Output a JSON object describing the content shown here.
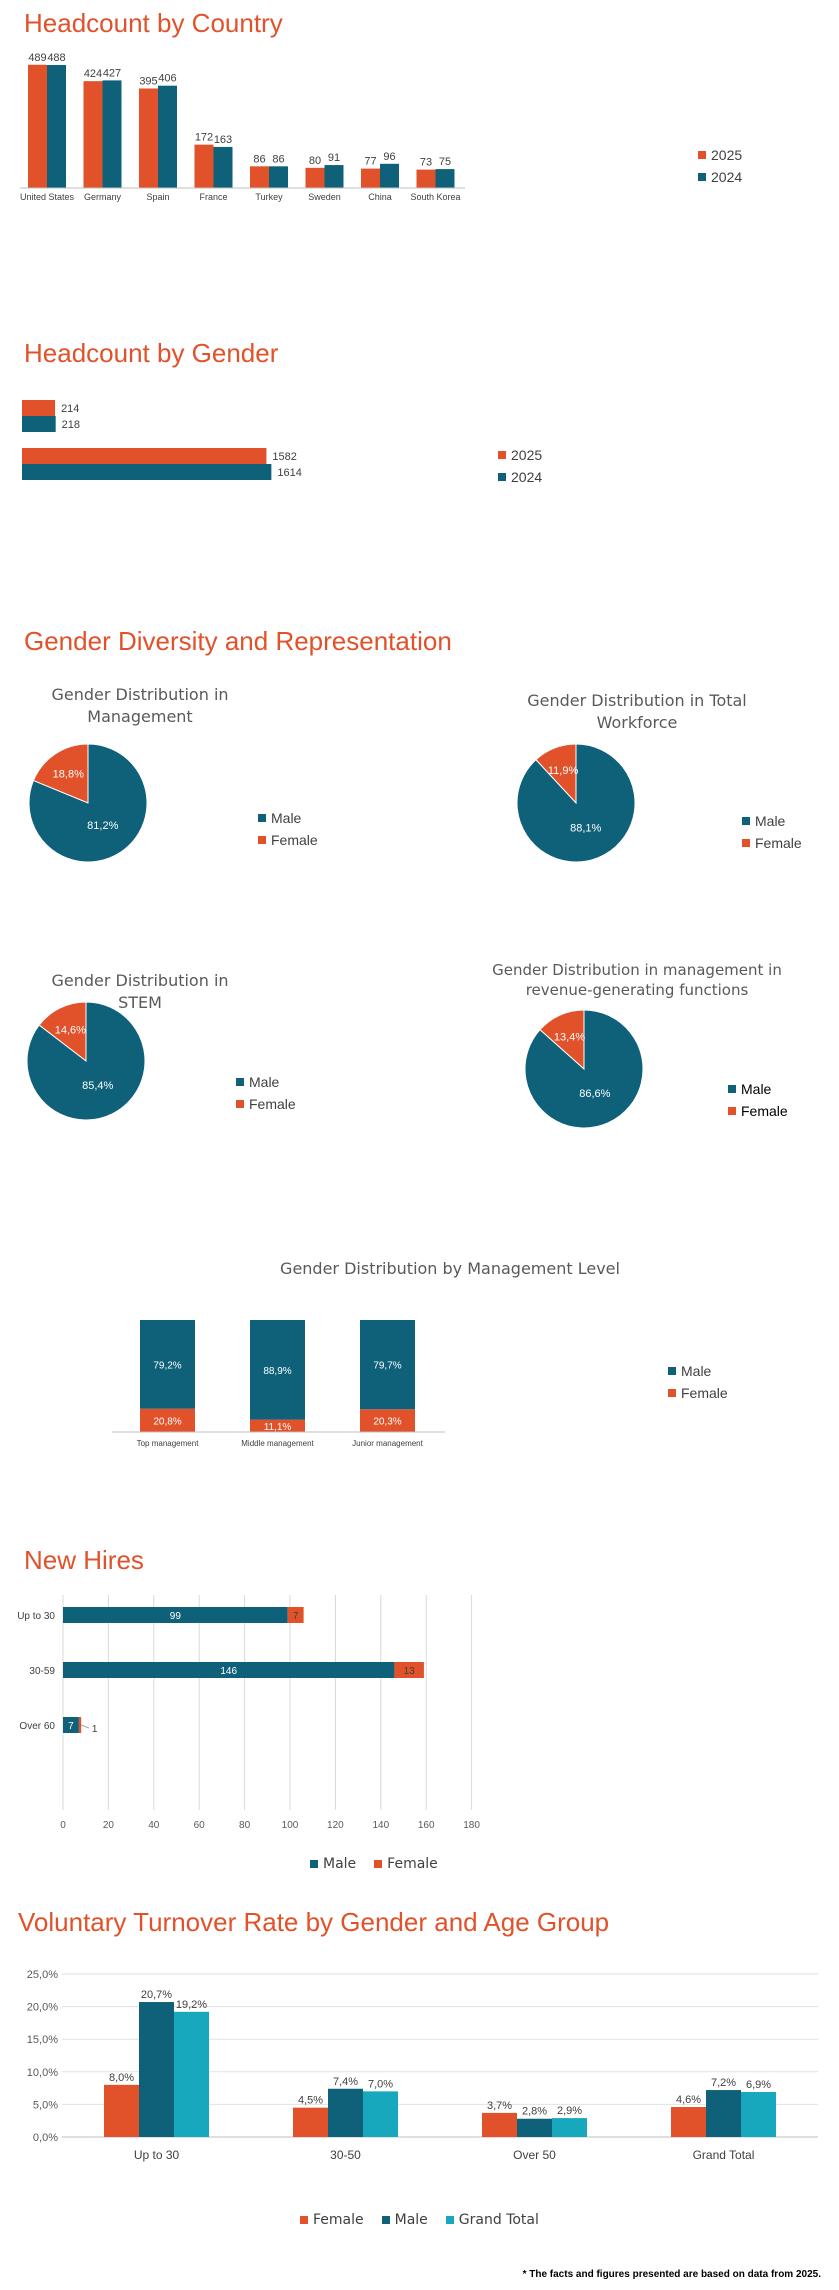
{
  "colors": {
    "orange": "#e2522a",
    "teal": "#0e6179",
    "cyan": "#17a8bd",
    "title": "#e2522a"
  },
  "sections": {
    "headcount_country": "Headcount by Country",
    "headcount_gender": "Headcount by Gender",
    "diversity": "Gender Diversity and Representation",
    "new_hires": "New Hires",
    "turnover": "Voluntary Turnover Rate by Gender and Age Group"
  },
  "pie_titles": {
    "management": "Gender Distribution in Management",
    "workforce": "Gender Distribution in Total Workforce",
    "stem": "Gender Distribution in STEM",
    "revenue": "Gender Distribution in management in revenue-generating functions"
  },
  "mgmt_level_title": "Gender Distribution by Management Level",
  "legends": {
    "years": [
      "2025",
      "2024"
    ],
    "gender": [
      "Male",
      "Female"
    ],
    "turnover": [
      "Female",
      "Male",
      "Grand Total"
    ]
  },
  "footnote": "* The facts and figures presented are based on data from 2025.",
  "chart_data": [
    {
      "id": "country",
      "type": "bar",
      "categories": [
        "United States",
        "Germany",
        "Spain",
        "France",
        "Turkey",
        "Sweden",
        "China",
        "South Korea"
      ],
      "series": [
        {
          "name": "2025",
          "values": [
            489,
            424,
            395,
            172,
            86,
            80,
            77,
            73
          ]
        },
        {
          "name": "2024",
          "values": [
            488,
            427,
            406,
            163,
            86,
            91,
            96,
            75
          ]
        }
      ],
      "title": "Headcount by Country"
    },
    {
      "id": "gender",
      "type": "bar",
      "orientation": "horizontal",
      "categories": [
        "",
        ""
      ],
      "series": [
        {
          "name": "2025",
          "values": [
            214,
            1582
          ]
        },
        {
          "name": "2024",
          "values": [
            218,
            1614
          ]
        }
      ],
      "title": "Headcount by Gender"
    },
    {
      "id": "pie_management",
      "type": "pie",
      "title": "Gender Distribution in Management",
      "labels": [
        "Male",
        "Female"
      ],
      "values": [
        81.2,
        18.8
      ],
      "value_labels": [
        "81,2%",
        "18,8%"
      ]
    },
    {
      "id": "pie_workforce",
      "type": "pie",
      "title": "Gender Distribution in Total Workforce",
      "labels": [
        "Male",
        "Female"
      ],
      "values": [
        88.1,
        11.9
      ],
      "value_labels": [
        "88,1%",
        "11,9%"
      ]
    },
    {
      "id": "pie_stem",
      "type": "pie",
      "title": "Gender Distribution in STEM",
      "labels": [
        "Male",
        "Female"
      ],
      "values": [
        85.4,
        14.6
      ],
      "value_labels": [
        "85,4%",
        "14,6%"
      ]
    },
    {
      "id": "pie_revenue",
      "type": "pie",
      "title": "Gender Distribution in management in revenue-generating functions",
      "labels": [
        "Male",
        "Female"
      ],
      "values": [
        86.6,
        13.4
      ],
      "value_labels": [
        "86,6%",
        "13,4%"
      ]
    },
    {
      "id": "mgmt_level",
      "type": "bar",
      "stacked": true,
      "title": "Gender Distribution by Management Level",
      "categories": [
        "Top management",
        "Middle management",
        "Junior management"
      ],
      "series": [
        {
          "name": "Male",
          "values": [
            79.2,
            88.9,
            79.7
          ],
          "labels": [
            "79,2%",
            "88,9%",
            "79,7%"
          ]
        },
        {
          "name": "Female",
          "values": [
            20.8,
            11.1,
            20.3
          ],
          "labels": [
            "20,8%",
            "11,1%",
            "20,3%"
          ]
        }
      ]
    },
    {
      "id": "new_hires",
      "type": "bar",
      "orientation": "horizontal",
      "stacked": true,
      "title": "New Hires",
      "categories": [
        "Up to 30",
        "30-59",
        "Over 60"
      ],
      "series": [
        {
          "name": "Male",
          "values": [
            99,
            146,
            7
          ]
        },
        {
          "name": "Female",
          "values": [
            7,
            13,
            1
          ]
        }
      ],
      "xlim": [
        0,
        180
      ],
      "xticks": [
        "0",
        "20",
        "40",
        "60",
        "80",
        "100",
        "120",
        "140",
        "160",
        "180"
      ]
    },
    {
      "id": "turnover",
      "type": "bar",
      "title": "Voluntary Turnover Rate by Gender and Age Group",
      "categories": [
        "Up to 30",
        "30-50",
        "Over 50",
        "Grand Total"
      ],
      "series": [
        {
          "name": "Female",
          "values": [
            8.0,
            4.5,
            3.7,
            4.6
          ],
          "labels": [
            "8,0%",
            "4,5%",
            "3,7%",
            "4,6%"
          ]
        },
        {
          "name": "Male",
          "values": [
            20.7,
            7.4,
            2.8,
            7.2
          ],
          "labels": [
            "20,7%",
            "7,4%",
            "2,8%",
            "7,2%"
          ]
        },
        {
          "name": "Grand Total",
          "values": [
            19.2,
            7.0,
            2.9,
            6.9
          ],
          "labels": [
            "19,2%",
            "7,0%",
            "2,9%",
            "6,9%"
          ]
        }
      ],
      "ylim": [
        0,
        25
      ],
      "yticks": [
        "0,0%",
        "5,0%",
        "10,0%",
        "15,0%",
        "20,0%",
        "25,0%"
      ],
      "grid": true
    }
  ]
}
